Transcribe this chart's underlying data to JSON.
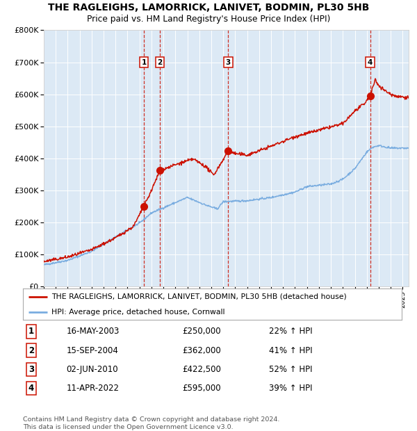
{
  "title": "THE RAGLEIGHS, LAMORRICK, LANIVET, BODMIN, PL30 5HB",
  "subtitle": "Price paid vs. HM Land Registry's House Price Index (HPI)",
  "bg_color": "#dce9f5",
  "grid_color": "#ffffff",
  "hpi_color": "#7aade0",
  "price_color": "#cc1100",
  "sales": [
    {
      "label": "1",
      "date_str": "16-MAY-2003",
      "date_x": 2003.37,
      "price": 250000
    },
    {
      "label": "2",
      "date_str": "15-SEP-2004",
      "date_x": 2004.71,
      "price": 362000
    },
    {
      "label": "3",
      "date_str": "02-JUN-2010",
      "date_x": 2010.42,
      "price": 422500
    },
    {
      "label": "4",
      "date_str": "11-APR-2022",
      "date_x": 2022.28,
      "price": 595000
    }
  ],
  "table_rows": [
    [
      "1",
      "16-MAY-2003",
      "£250,000",
      "22% ↑ HPI"
    ],
    [
      "2",
      "15-SEP-2004",
      "£362,000",
      "41% ↑ HPI"
    ],
    [
      "3",
      "02-JUN-2010",
      "£422,500",
      "52% ↑ HPI"
    ],
    [
      "4",
      "11-APR-2022",
      "£595,000",
      "39% ↑ HPI"
    ]
  ],
  "legend_entries": [
    "THE RAGLEIGHS, LAMORRICK, LANIVET, BODMIN, PL30 5HB (detached house)",
    "HPI: Average price, detached house, Cornwall"
  ],
  "footer": "Contains HM Land Registry data © Crown copyright and database right 2024.\nThis data is licensed under the Open Government Licence v3.0.",
  "ylim": [
    0,
    800000
  ],
  "yticks": [
    0,
    100000,
    200000,
    300000,
    400000,
    500000,
    600000,
    700000,
    800000
  ],
  "xmin": 1995,
  "xmax": 2025.5
}
